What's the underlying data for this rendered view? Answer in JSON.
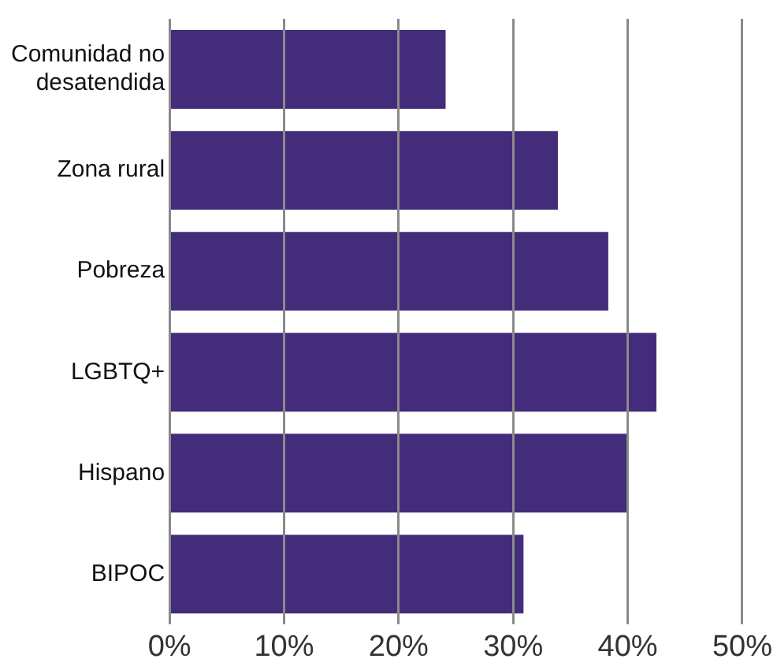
{
  "chart_data": {
    "type": "bar",
    "orientation": "horizontal",
    "categories": [
      [
        "Comunidad no",
        "desatendida"
      ],
      "Zona rural",
      "Pobreza",
      "LGBTQ+",
      "Hispano",
      "BIPOC"
    ],
    "values": [
      24.1,
      33.9,
      38.3,
      42.5,
      40.0,
      30.9
    ],
    "color": "#432c7a",
    "xlim": [
      0,
      50
    ],
    "xticks": [
      {
        "value": 0,
        "label": "0%"
      },
      {
        "value": 10,
        "label": "10%"
      },
      {
        "value": 20,
        "label": "20%"
      },
      {
        "value": 30,
        "label": "30%"
      },
      {
        "value": 40,
        "label": "40%"
      },
      {
        "value": 50,
        "label": "50%"
      }
    ],
    "grid": "x",
    "legend": false
  }
}
